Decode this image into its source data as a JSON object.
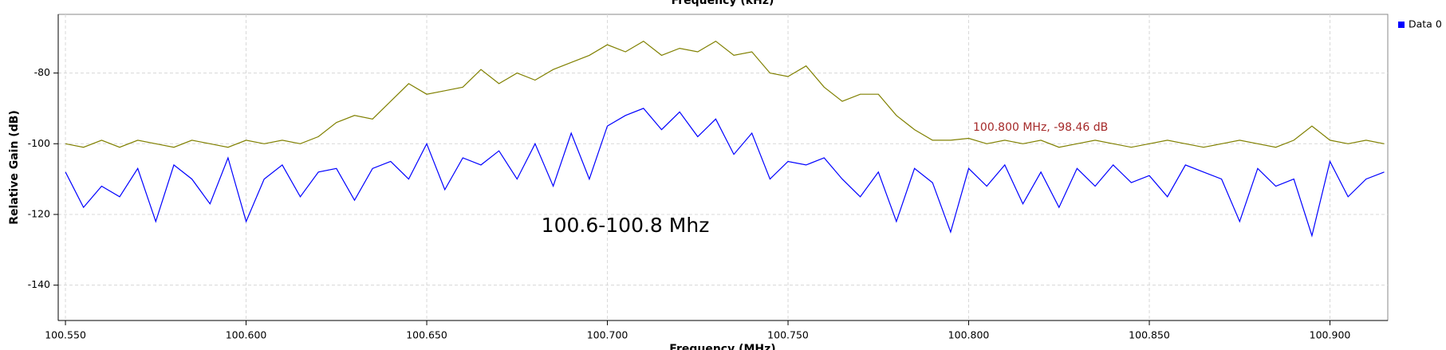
{
  "chart_data": {
    "type": "line",
    "title": "Frequency (kHz)",
    "x_label": "Frequency (MHz)",
    "y_label": "Relative Gain (dB)",
    "annotation": "100.6-100.8 Mhz",
    "marker_label": "100.800 MHz, -98.46 dB",
    "grid": true,
    "legend": "upper right",
    "xlim": [
      100.548,
      100.916
    ],
    "ylim": [
      -150,
      -63.4
    ],
    "xticks": [
      {
        "value": 100.55,
        "label": "100.550"
      },
      {
        "value": 100.6,
        "label": "100.600"
      },
      {
        "value": 100.65,
        "label": "100.650"
      },
      {
        "value": 100.7,
        "label": "100.700"
      },
      {
        "value": 100.75,
        "label": "100.750"
      },
      {
        "value": 100.8,
        "label": "100.800"
      },
      {
        "value": 100.85,
        "label": "100.850"
      },
      {
        "value": 100.9,
        "label": "100.900"
      }
    ],
    "yticks": [
      -80,
      -100,
      -120,
      -140
    ],
    "x": [
      100.55,
      100.555,
      100.56,
      100.565,
      100.57,
      100.575,
      100.58,
      100.585,
      100.59,
      100.595,
      100.6,
      100.605,
      100.61,
      100.615,
      100.62,
      100.625,
      100.63,
      100.635,
      100.64,
      100.645,
      100.65,
      100.655,
      100.66,
      100.665,
      100.67,
      100.675,
      100.68,
      100.685,
      100.69,
      100.695,
      100.7,
      100.705,
      100.71,
      100.715,
      100.72,
      100.725,
      100.73,
      100.735,
      100.74,
      100.745,
      100.75,
      100.755,
      100.76,
      100.765,
      100.77,
      100.775,
      100.78,
      100.785,
      100.79,
      100.795,
      100.8,
      100.805,
      100.81,
      100.815,
      100.82,
      100.825,
      100.83,
      100.835,
      100.84,
      100.845,
      100.85,
      100.855,
      100.86,
      100.865,
      100.87,
      100.875,
      100.88,
      100.885,
      100.89,
      100.895,
      100.9,
      100.905,
      100.91,
      100.915
    ],
    "series": [
      {
        "name": "Data 0",
        "color": "#0000ff",
        "values": [
          -108,
          -118,
          -112,
          -115,
          -107,
          -122,
          -106,
          -110,
          -117,
          -104,
          -122,
          -110,
          -106,
          -115,
          -108,
          -107,
          -116,
          -107,
          -105,
          -110,
          -100,
          -113,
          -104,
          -106,
          -102,
          -110,
          -100,
          -112,
          -97,
          -110,
          -95,
          -92,
          -90,
          -96,
          -91,
          -98,
          -93,
          -103,
          -97,
          -110,
          -105,
          -106,
          -104,
          -110,
          -115,
          -108,
          -122,
          -107,
          -111,
          -125,
          -107,
          -112,
          -106,
          -117,
          -108,
          -118,
          -107,
          -112,
          -106,
          -111,
          -109,
          -115,
          -106,
          -108,
          -110,
          -122,
          -107,
          -112,
          -110,
          -126,
          -105,
          -115,
          -110,
          -108
        ]
      },
      {
        "color": "#808000",
        "values": [
          -100,
          -101,
          -99,
          -101,
          -99,
          -100,
          -101,
          -99,
          -100,
          -101,
          -99,
          -100,
          -99,
          -100,
          -98,
          -94,
          -92,
          -93,
          -88,
          -83,
          -86,
          -85,
          -84,
          -79,
          -83,
          -80,
          -82,
          -79,
          -77,
          -75,
          -72,
          -74,
          -71,
          -75,
          -73,
          -74,
          -71,
          -75,
          -74,
          -80,
          -81,
          -78,
          -84,
          -88,
          -86,
          -86,
          -92,
          -96,
          -99,
          -99,
          -98.46,
          -100,
          -99,
          -100,
          -99,
          -101,
          -100,
          -99,
          -100,
          -101,
          -100,
          -99,
          -100,
          -101,
          -100,
          -99,
          -100,
          -101,
          -99,
          -95,
          -99,
          -100,
          -99,
          -100
        ]
      }
    ]
  }
}
